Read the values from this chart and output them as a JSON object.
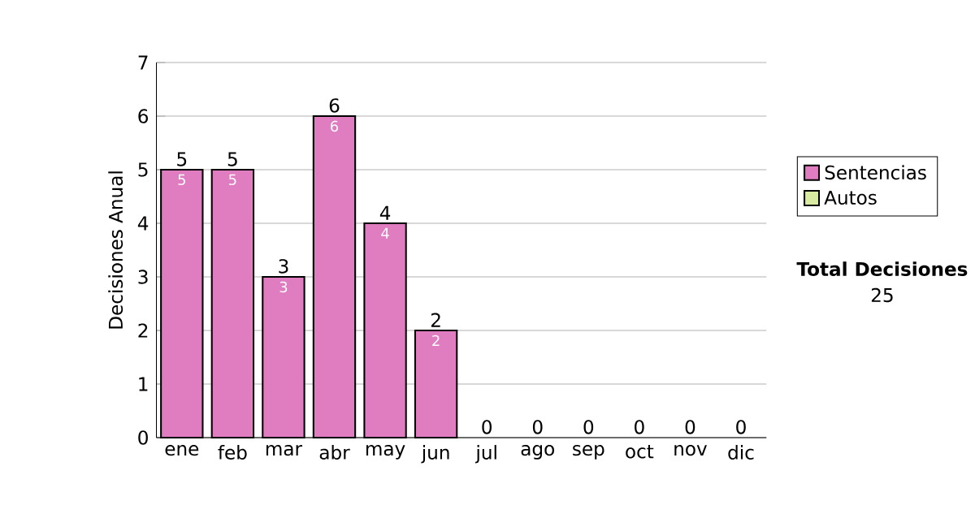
{
  "chart_data": {
    "type": "bar",
    "stacked": true,
    "categories": [
      "ene",
      "feb",
      "mar",
      "abr",
      "may",
      "jun",
      "jul",
      "ago",
      "sep",
      "oct",
      "nov",
      "dic"
    ],
    "series": [
      {
        "name": "Sentencias",
        "color": "#e07cc0",
        "values": [
          5,
          5,
          3,
          6,
          4,
          2,
          0,
          0,
          0,
          0,
          0,
          0
        ],
        "value_labels": [
          "5",
          "5",
          "3",
          "6",
          "4",
          "2",
          null,
          null,
          null,
          null,
          null,
          null
        ]
      },
      {
        "name": "Autos",
        "color": "#d8eba0",
        "values": [
          0,
          0,
          0,
          0,
          0,
          0,
          0,
          0,
          0,
          0,
          0,
          0
        ]
      }
    ],
    "totals": [
      "5",
      "5",
      "3",
      "6",
      "4",
      "2",
      "0",
      "0",
      "0",
      "0",
      "0",
      "0"
    ],
    "ylabel": "Decisiones Anual",
    "ylim": [
      0,
      7
    ],
    "yticks": [
      0,
      1,
      2,
      3,
      4,
      5,
      6,
      7
    ],
    "grid": "y",
    "legend": "right",
    "annotations": [
      "Total Decisiones",
      "25"
    ]
  }
}
